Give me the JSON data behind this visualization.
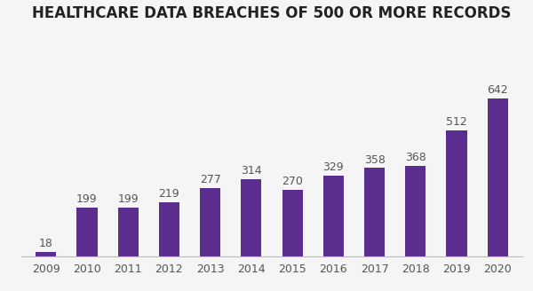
{
  "title": "HEALTHCARE DATA BREACHES OF 500 OR MORE RECORDS",
  "categories": [
    "2009",
    "2010",
    "2011",
    "2012",
    "2013",
    "2014",
    "2015",
    "2016",
    "2017",
    "2018",
    "2019",
    "2020"
  ],
  "values": [
    18,
    199,
    199,
    219,
    277,
    314,
    270,
    329,
    358,
    368,
    512,
    642
  ],
  "bar_color": "#5b2d8e",
  "background_color": "#f5f5f5",
  "ylim": [
    0,
    900
  ],
  "title_fontsize": 12,
  "label_fontsize": 9,
  "tick_fontsize": 9,
  "bar_width": 0.5
}
